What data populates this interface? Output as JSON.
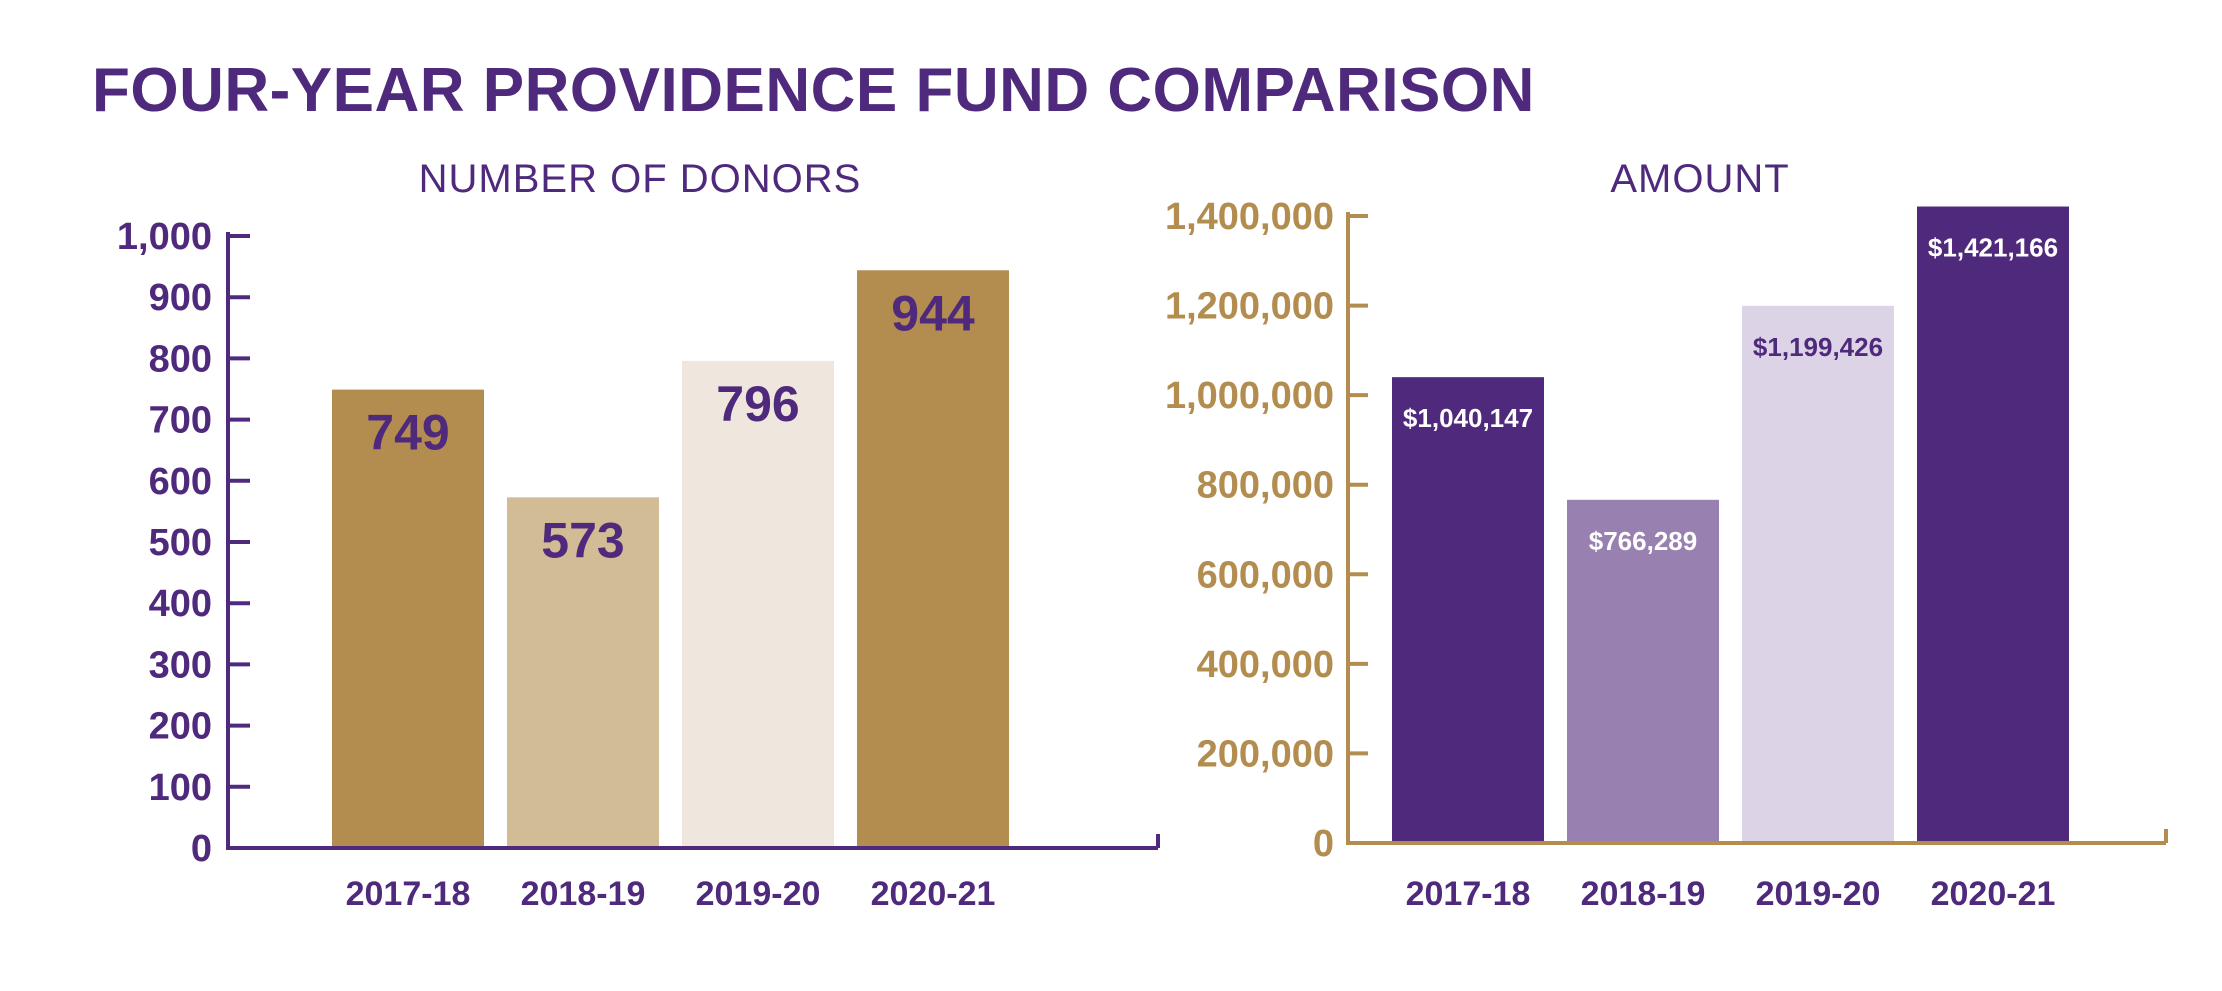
{
  "title": "FOUR-YEAR PROVIDENCE FUND COMPARISON",
  "colors": {
    "purple": "#4f2a7c",
    "gold": "#b38d4f",
    "gold_light": "#d2bc96",
    "cream": "#efe7dd",
    "lavender_mid": "#9880b0",
    "lavender_light": "#dcd3e6",
    "white": "#ffffff"
  },
  "chart_data": [
    {
      "type": "bar",
      "title": "NUMBER OF DONORS",
      "categories": [
        "2017-18",
        "2018-19",
        "2019-20",
        "2020-21"
      ],
      "values": [
        749,
        573,
        796,
        944
      ],
      "data_labels": [
        "749",
        "573",
        "796",
        "944"
      ],
      "ylim": [
        0,
        1000
      ],
      "yticks": [
        0,
        100,
        200,
        300,
        400,
        500,
        600,
        700,
        800,
        900,
        1000
      ],
      "ytick_labels": [
        "0",
        "100",
        "200",
        "300",
        "400",
        "500",
        "600",
        "700",
        "800",
        "900",
        "1,000"
      ],
      "bar_colors": [
        "#b38d4f",
        "#d2bc96",
        "#efe7dd",
        "#b38d4f"
      ],
      "label_colors": [
        "#4f2a7c",
        "#4f2a7c",
        "#4f2a7c",
        "#4f2a7c"
      ],
      "axis_color": "#4f2a7c",
      "grid": false
    },
    {
      "type": "bar",
      "title": "AMOUNT",
      "categories": [
        "2017-18",
        "2018-19",
        "2019-20",
        "2020-21"
      ],
      "values": [
        1040147,
        766289,
        1199426,
        1421166
      ],
      "data_labels": [
        "$1,040,147",
        "$766,289",
        "$1,199,426",
        "$1,421,166"
      ],
      "ylim": [
        0,
        1400000
      ],
      "yticks": [
        0,
        200000,
        400000,
        600000,
        800000,
        1000000,
        1200000,
        1400000
      ],
      "ytick_labels": [
        "0",
        "200,000",
        "400,000",
        "600,000",
        "800,000",
        "1,000,000",
        "1,200,000",
        "1,400,000"
      ],
      "bar_colors": [
        "#4f2a7c",
        "#9880b0",
        "#dcd3e6",
        "#4f2a7c"
      ],
      "label_colors": [
        "#ffffff",
        "#ffffff",
        "#4f2a7c",
        "#ffffff"
      ],
      "axis_color": "#b38d4f",
      "grid": false
    }
  ]
}
